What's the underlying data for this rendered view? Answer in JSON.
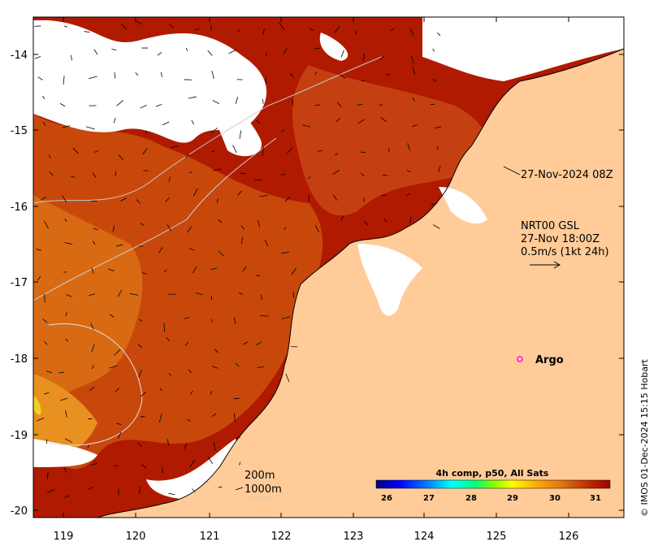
{
  "map": {
    "timestamp_label": "27-Nov-2024 08Z",
    "current_product": {
      "line1": "NRT00 GSL",
      "line2": "27-Nov 18:00Z",
      "line3": "0.5m/s (1kt 24h)"
    },
    "argo_label": "Argo",
    "contours": {
      "label_200": "200m",
      "label_1000": "1000m"
    },
    "credit": "© IMOS 01-Dec-2024 15:15 Hobart",
    "x_ticks": [
      "119",
      "120",
      "121",
      "122",
      "123",
      "124",
      "125",
      "126"
    ],
    "y_ticks": [
      "-14",
      "-15",
      "-16",
      "-17",
      "-18",
      "-19",
      "-20"
    ],
    "colorbar": {
      "title": "4h comp, p50, All Sats",
      "labels": [
        "26",
        "27",
        "28",
        "29",
        "30",
        "31"
      ],
      "colors": [
        "#00007f",
        "#0000ff",
        "#0080ff",
        "#00ffff",
        "#00ff80",
        "#80ff00",
        "#ffff00",
        "#ffb000",
        "#e07010",
        "#c03000",
        "#a00000"
      ]
    },
    "colors": {
      "land": "#ffcc99",
      "cloud": "#ffffff",
      "sst_warm": "#b01a00",
      "sst_mid": "#d05a10",
      "argo_marker": "#ff00ff"
    }
  }
}
